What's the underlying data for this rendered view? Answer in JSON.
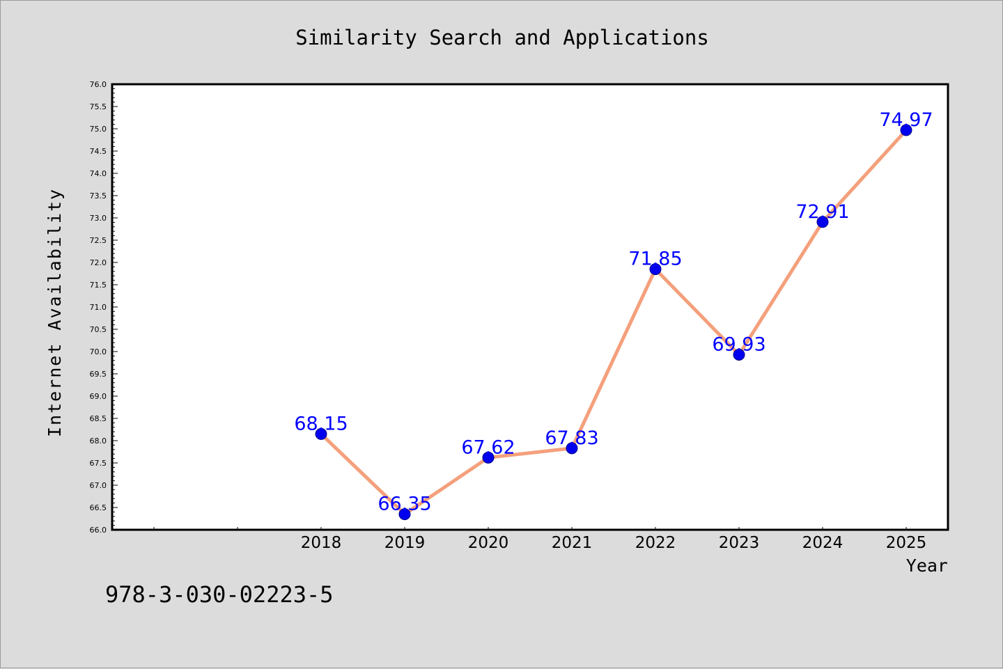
{
  "chart_data": {
    "type": "line",
    "title": "Similarity Search and Applications",
    "xlabel": "Year",
    "ylabel": "Internet Availability",
    "x": [
      "2018",
      "2019",
      "2020",
      "2021",
      "2022",
      "2023",
      "2024",
      "2025"
    ],
    "series": [
      {
        "values": [
          68.15,
          66.35,
          67.62,
          67.83,
          71.85,
          69.93,
          72.91,
          74.97
        ]
      }
    ],
    "data_labels": [
      "68.15",
      "66.35",
      "67.62",
      "67.83",
      "71.85",
      "69.93",
      "72.91",
      "74.97"
    ],
    "ylim": [
      66.0,
      76.0
    ],
    "y_ticks": [
      "66.0",
      "66.5",
      "67.0",
      "67.5",
      "68.0",
      "68.5",
      "69.0",
      "69.5",
      "70.0",
      "70.5",
      "71.0",
      "71.5",
      "72.0",
      "72.5",
      "73.0",
      "73.5",
      "74.0",
      "74.5",
      "75.0",
      "75.5",
      "76.0"
    ],
    "grid": false,
    "legend": "none",
    "colors": {
      "line": "#f4a07c",
      "marker": "#0000ee",
      "data_label": "#0000ff",
      "frame": "#000000"
    }
  },
  "footer_text": "978-3-030-02223-5"
}
